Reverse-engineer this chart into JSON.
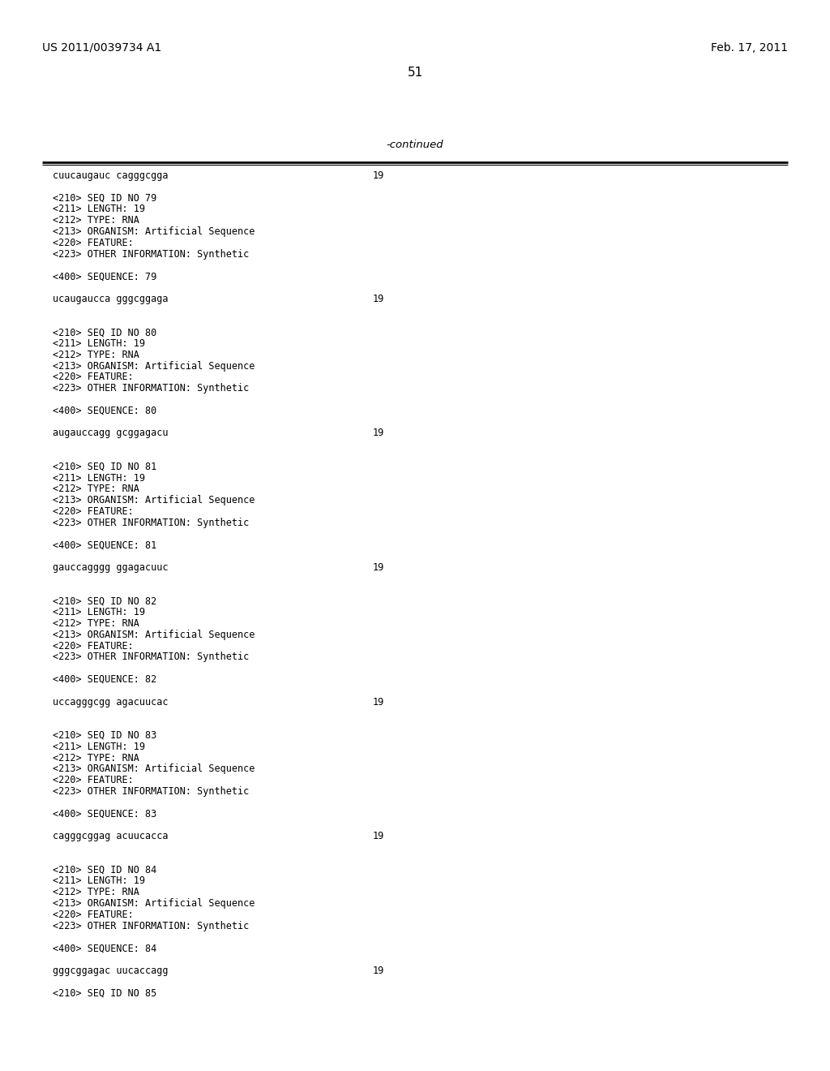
{
  "header_left": "US 2011/0039734 A1",
  "header_right": "Feb. 17, 2011",
  "page_number": "51",
  "continued_label": "-continued",
  "background_color": "#ffffff",
  "text_color": "#000000",
  "content_lines": [
    {
      "text": "cuucaugauc cagggcgga",
      "num": "19"
    },
    {
      "text": ""
    },
    {
      "text": "<210> SEQ ID NO 79"
    },
    {
      "text": "<211> LENGTH: 19"
    },
    {
      "text": "<212> TYPE: RNA"
    },
    {
      "text": "<213> ORGANISM: Artificial Sequence"
    },
    {
      "text": "<220> FEATURE:"
    },
    {
      "text": "<223> OTHER INFORMATION: Synthetic"
    },
    {
      "text": ""
    },
    {
      "text": "<400> SEQUENCE: 79"
    },
    {
      "text": ""
    },
    {
      "text": "ucaugaucca gggcggaga",
      "num": "19"
    },
    {
      "text": ""
    },
    {
      "text": ""
    },
    {
      "text": "<210> SEQ ID NO 80"
    },
    {
      "text": "<211> LENGTH: 19"
    },
    {
      "text": "<212> TYPE: RNA"
    },
    {
      "text": "<213> ORGANISM: Artificial Sequence"
    },
    {
      "text": "<220> FEATURE:"
    },
    {
      "text": "<223> OTHER INFORMATION: Synthetic"
    },
    {
      "text": ""
    },
    {
      "text": "<400> SEQUENCE: 80"
    },
    {
      "text": ""
    },
    {
      "text": "augauccagg gcggagacu",
      "num": "19"
    },
    {
      "text": ""
    },
    {
      "text": ""
    },
    {
      "text": "<210> SEQ ID NO 81"
    },
    {
      "text": "<211> LENGTH: 19"
    },
    {
      "text": "<212> TYPE: RNA"
    },
    {
      "text": "<213> ORGANISM: Artificial Sequence"
    },
    {
      "text": "<220> FEATURE:"
    },
    {
      "text": "<223> OTHER INFORMATION: Synthetic"
    },
    {
      "text": ""
    },
    {
      "text": "<400> SEQUENCE: 81"
    },
    {
      "text": ""
    },
    {
      "text": "gauccagggg ggagacuuc",
      "num": "19"
    },
    {
      "text": ""
    },
    {
      "text": ""
    },
    {
      "text": "<210> SEQ ID NO 82"
    },
    {
      "text": "<211> LENGTH: 19"
    },
    {
      "text": "<212> TYPE: RNA"
    },
    {
      "text": "<213> ORGANISM: Artificial Sequence"
    },
    {
      "text": "<220> FEATURE:"
    },
    {
      "text": "<223> OTHER INFORMATION: Synthetic"
    },
    {
      "text": ""
    },
    {
      "text": "<400> SEQUENCE: 82"
    },
    {
      "text": ""
    },
    {
      "text": "uccagggcgg agacuucac",
      "num": "19"
    },
    {
      "text": ""
    },
    {
      "text": ""
    },
    {
      "text": "<210> SEQ ID NO 83"
    },
    {
      "text": "<211> LENGTH: 19"
    },
    {
      "text": "<212> TYPE: RNA"
    },
    {
      "text": "<213> ORGANISM: Artificial Sequence"
    },
    {
      "text": "<220> FEATURE:"
    },
    {
      "text": "<223> OTHER INFORMATION: Synthetic"
    },
    {
      "text": ""
    },
    {
      "text": "<400> SEQUENCE: 83"
    },
    {
      "text": ""
    },
    {
      "text": "cagggcggag acuucacca",
      "num": "19"
    },
    {
      "text": ""
    },
    {
      "text": ""
    },
    {
      "text": "<210> SEQ ID NO 84"
    },
    {
      "text": "<211> LENGTH: 19"
    },
    {
      "text": "<212> TYPE: RNA"
    },
    {
      "text": "<213> ORGANISM: Artificial Sequence"
    },
    {
      "text": "<220> FEATURE:"
    },
    {
      "text": "<223> OTHER INFORMATION: Synthetic"
    },
    {
      "text": ""
    },
    {
      "text": "<400> SEQUENCE: 84"
    },
    {
      "text": ""
    },
    {
      "text": "gggcggagac uucaccagg",
      "num": "19"
    },
    {
      "text": ""
    },
    {
      "text": "<210> SEQ ID NO 85"
    }
  ]
}
